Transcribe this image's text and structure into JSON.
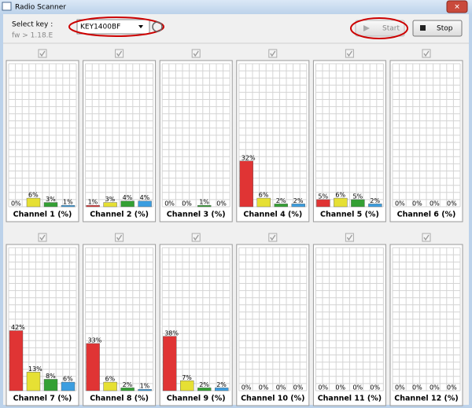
{
  "window": {
    "title": "Radio Scanner"
  },
  "controls": {
    "select_label": "Select key :",
    "key": "KEY1400BF",
    "fw": "fw > 1.18.E",
    "start": "Start",
    "stop": "Stop"
  },
  "channels": {
    "ylim": [
      0,
      100
    ],
    "colors": [
      "#e03434",
      "#e6e034",
      "#34a034",
      "#3c9ee0"
    ],
    "items": [
      {
        "label": "Channel 1 (%)",
        "values": [
          0,
          6,
          3,
          1
        ],
        "value_labels": [
          "0%",
          "6%",
          "3%",
          "1%"
        ]
      },
      {
        "label": "Channel 2 (%)",
        "values": [
          1,
          3,
          4,
          4
        ],
        "value_labels": [
          "1%",
          "3%",
          "4%",
          "4%"
        ]
      },
      {
        "label": "Channel 3 (%)",
        "values": [
          0,
          0,
          1,
          0
        ],
        "value_labels": [
          "0%",
          "0%",
          "1%",
          "0%"
        ]
      },
      {
        "label": "Channel 4 (%)",
        "values": [
          32,
          6,
          2,
          2
        ],
        "value_labels": [
          "32%",
          "6%",
          "2%",
          "2%"
        ]
      },
      {
        "label": "Channel 5 (%)",
        "values": [
          5,
          6,
          5,
          2
        ],
        "value_labels": [
          "5%",
          "6%",
          "5%",
          "2%"
        ]
      },
      {
        "label": "Channel 6 (%)",
        "values": [
          0,
          0,
          0,
          0
        ],
        "value_labels": [
          "0%",
          "0%",
          "0%",
          "0%"
        ]
      },
      {
        "label": "Channel 7 (%)",
        "values": [
          42,
          13,
          8,
          6
        ],
        "value_labels": [
          "42%",
          "13%",
          "8%",
          "6%"
        ]
      },
      {
        "label": "Channel 8 (%)",
        "values": [
          33,
          6,
          2,
          1
        ],
        "value_labels": [
          "33%",
          "6%",
          "2%",
          "1%"
        ]
      },
      {
        "label": "Channel 9 (%)",
        "values": [
          38,
          7,
          2,
          2
        ],
        "value_labels": [
          "38%",
          "7%",
          "2%",
          "2%"
        ]
      },
      {
        "label": "Channel 10 (%)",
        "values": [
          0,
          0,
          0,
          0
        ],
        "value_labels": [
          "0%",
          "0%",
          "0%",
          "0%"
        ]
      },
      {
        "label": "Channel 11 (%)",
        "values": [
          0,
          0,
          0,
          0
        ],
        "value_labels": [
          "0%",
          "0%",
          "0%",
          "0%"
        ]
      },
      {
        "label": "Channel 12 (%)",
        "values": [
          0,
          0,
          0,
          0
        ],
        "value_labels": [
          "0%",
          "0%",
          "0%",
          "0%"
        ]
      }
    ]
  }
}
